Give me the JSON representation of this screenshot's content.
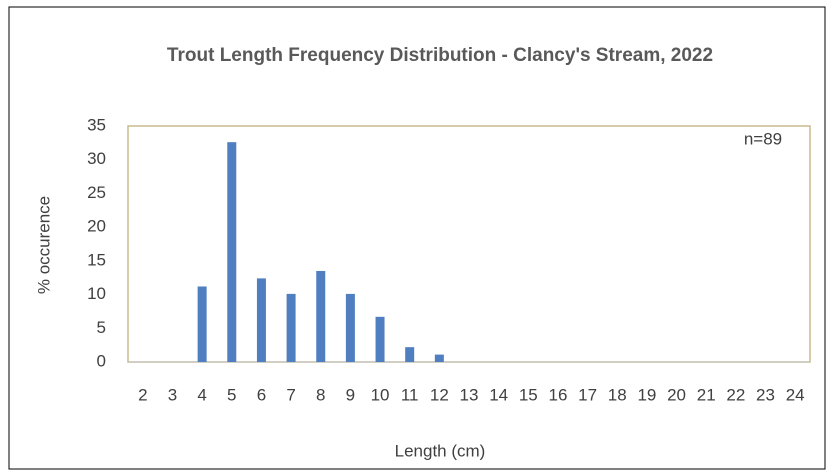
{
  "chart_data": {
    "type": "bar",
    "title": "Trout Length Frequency Distribution - Clancy's Stream, 2022",
    "x_label": "Length (cm)",
    "y_label": "% occurence",
    "annotation": "n=89",
    "categories": [
      "2",
      "3",
      "4",
      "5",
      "6",
      "7",
      "8",
      "9",
      "10",
      "11",
      "12",
      "13",
      "14",
      "15",
      "16",
      "17",
      "18",
      "19",
      "20",
      "21",
      "22",
      "23",
      "24"
    ],
    "values": [
      0,
      0,
      11.2,
      32.6,
      12.4,
      10.1,
      13.5,
      10.1,
      6.7,
      2.2,
      1.1,
      0,
      0,
      0,
      0,
      0,
      0,
      0,
      0,
      0,
      0,
      0,
      0
    ],
    "color": "#4f7fc0",
    "ylim": [
      0,
      35
    ],
    "yticks": [
      0,
      5,
      10,
      15,
      20,
      25,
      30,
      35
    ],
    "grid": false
  }
}
